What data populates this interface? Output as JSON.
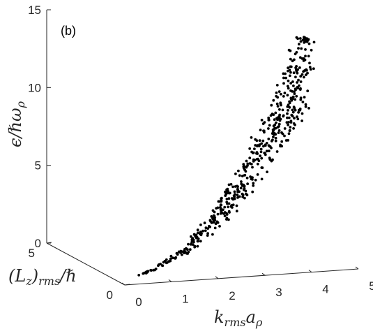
{
  "chart_data": {
    "type": "scatter",
    "panel_label": "(b)",
    "projection": "3d",
    "xlabel": "k_rms a_ρ",
    "ylabel": "(L_z)_rms/ℏ",
    "zlabel": "ε/ℏω_ρ",
    "xlim": [
      0,
      5
    ],
    "ylim": [
      0,
      5
    ],
    "zlim": [
      0,
      15
    ],
    "xticks": [
      "0",
      "1",
      "2",
      "3",
      "4",
      "5"
    ],
    "yticks": [
      "0",
      "5"
    ],
    "zticks": [
      "0",
      "5",
      "10",
      "15"
    ],
    "grid": false,
    "marker_color": "#000000"
  }
}
